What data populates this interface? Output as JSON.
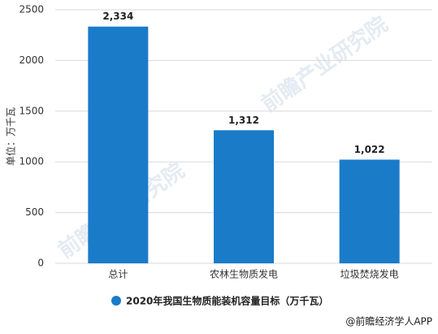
{
  "chart_data": {
    "type": "bar",
    "y_label": "单位：万千瓦",
    "categories": [
      "总计",
      "农林生物质发电",
      "垃圾焚烧发电"
    ],
    "series": [
      {
        "name": "2020年我国生物质能装机容量目标（万千瓦）",
        "color": "#1a7bc9",
        "values": [
          2334,
          1312,
          1022
        ],
        "value_labels": [
          "2,334",
          "1,312",
          "1,022"
        ]
      }
    ],
    "ylim": [
      0,
      2500
    ],
    "yticks": [
      0,
      500,
      1000,
      1500,
      2000,
      2500
    ],
    "grid": true,
    "watermark": "前瞻产业研究院",
    "source": "@前瞻经济学人APP"
  }
}
